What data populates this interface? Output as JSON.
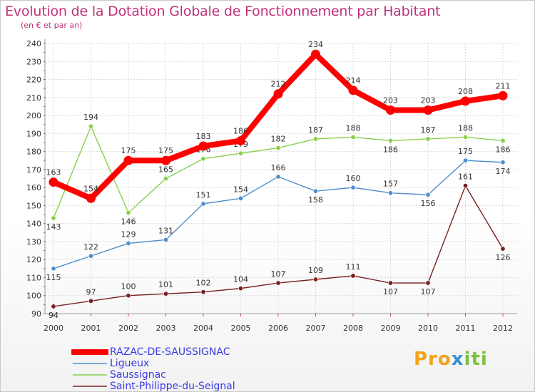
{
  "title": "Evolution de la Dotation Globale de Fonctionnement par Habitant",
  "subtitle": "(en € et par an)",
  "brand": {
    "text": "Proxiti"
  },
  "chart_data": {
    "type": "line",
    "x": [
      "2000",
      "2001",
      "2002",
      "2003",
      "2004",
      "2005",
      "2006",
      "2007",
      "2008",
      "2009",
      "2010",
      "2011",
      "2012"
    ],
    "ylim": [
      90,
      240
    ],
    "yticks": [
      90,
      100,
      110,
      120,
      130,
      140,
      150,
      160,
      170,
      180,
      190,
      200,
      210,
      220,
      230,
      240
    ],
    "grid": true,
    "legend_position": "bottom-left",
    "series": [
      {
        "name": "RAZAC-DE-SAUSSIGNAC",
        "color": "#ff0000",
        "values": [
          163,
          154,
          175,
          175,
          183,
          186,
          212,
          234,
          214,
          203,
          203,
          208,
          211
        ]
      },
      {
        "name": "Ligueux",
        "color": "#4f8fcc",
        "values": [
          115,
          122,
          129,
          131,
          151,
          154,
          166,
          158,
          160,
          157,
          156,
          175,
          174
        ]
      },
      {
        "name": "Saussignac",
        "color": "#88d048",
        "values": [
          143,
          194,
          146,
          165,
          176,
          179,
          182,
          187,
          188,
          186,
          187,
          188,
          186
        ]
      },
      {
        "name": "Saint-Philippe-du-Seignal",
        "color": "#7a2020",
        "values": [
          94,
          97,
          100,
          101,
          102,
          104,
          107,
          109,
          111,
          107,
          107,
          161,
          126
        ]
      }
    ]
  }
}
